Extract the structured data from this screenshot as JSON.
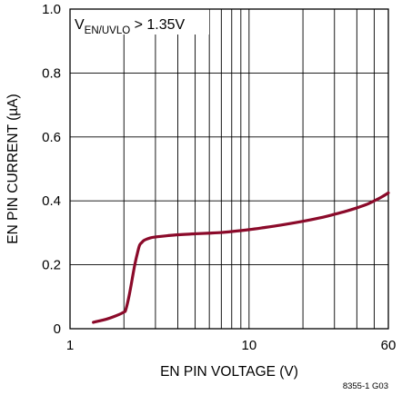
{
  "chart_data": {
    "type": "line",
    "title": "",
    "xlabel": "EN PIN VOLTAGE (V)",
    "ylabel": "EN PIN CURRENT (µA)",
    "xscale": "log",
    "xlim": [
      1,
      60
    ],
    "ylim": [
      0,
      1.0
    ],
    "x_tick_labels": [
      "1",
      "10",
      "60"
    ],
    "y_tick_labels": [
      "0",
      "0.2",
      "0.4",
      "0.6",
      "0.8",
      "1.0"
    ],
    "y_ticks": [
      0,
      0.2,
      0.4,
      0.6,
      0.8,
      1.0
    ],
    "x_ticks": [
      1,
      10,
      60
    ],
    "grid": true,
    "annotation": {
      "main": "V",
      "subscript": "EN/UVLO",
      "suffix": " > 1.35V"
    },
    "footnote": "8355-1 G03",
    "line_color": "#8b0a2a",
    "series": [
      {
        "x": [
          1.35,
          1.6,
          1.8,
          2.0,
          2.05,
          2.15,
          2.3,
          2.4,
          2.45,
          2.52,
          2.6,
          2.8,
          3.0,
          3.5,
          4.0,
          5.0,
          6.0,
          7.0,
          8.0,
          10.0,
          12.0,
          15.0,
          20.0,
          25.0,
          30.0,
          35.0,
          40.0,
          45.0,
          50.0,
          55.0,
          60.0
        ],
        "y": [
          0.02,
          0.03,
          0.04,
          0.052,
          0.06,
          0.11,
          0.2,
          0.245,
          0.262,
          0.27,
          0.277,
          0.284,
          0.287,
          0.291,
          0.294,
          0.297,
          0.299,
          0.301,
          0.304,
          0.31,
          0.316,
          0.324,
          0.336,
          0.347,
          0.358,
          0.368,
          0.378,
          0.388,
          0.4,
          0.412,
          0.425
        ]
      }
    ]
  }
}
